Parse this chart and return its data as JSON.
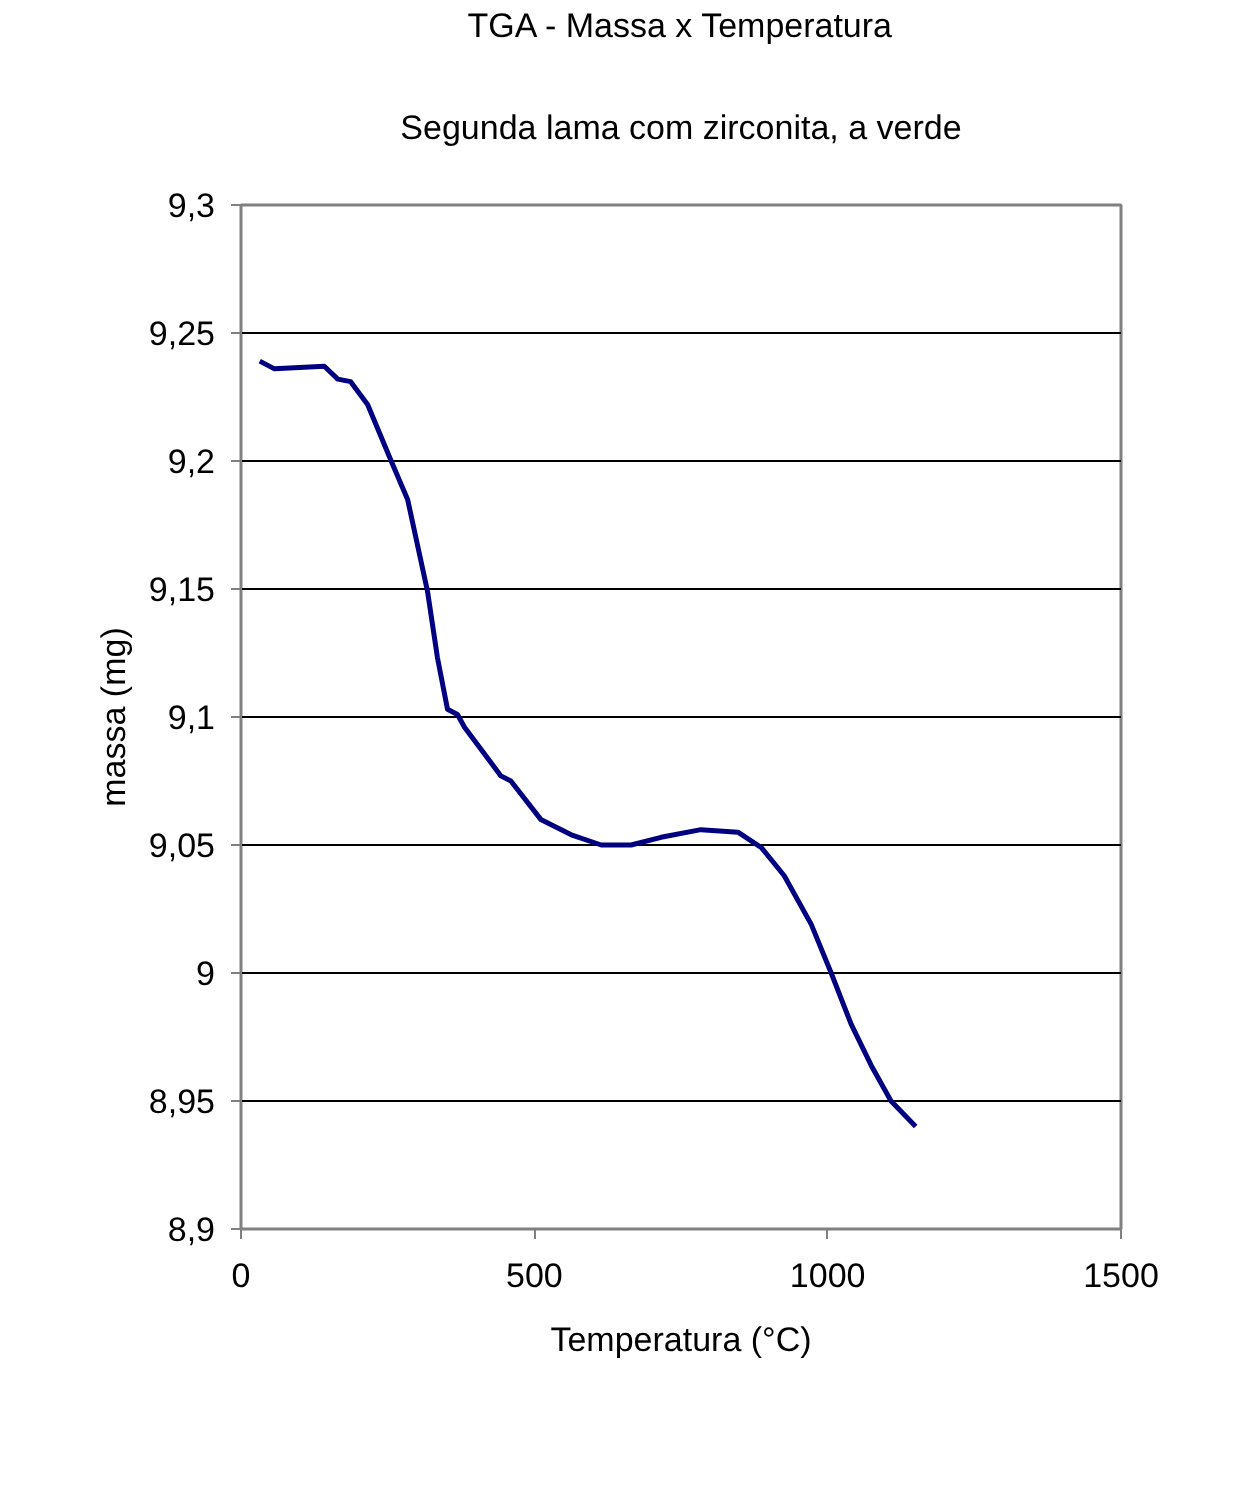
{
  "chart_data": {
    "type": "line",
    "title": "TGA - Massa x Temperatura",
    "subtitle": "Segunda lama com zirconita, a verde",
    "xlabel": "Temperatura (°C)",
    "ylabel": "massa (mg)",
    "xlim": [
      0,
      1500
    ],
    "xticks": [
      0,
      500,
      1000,
      1500
    ],
    "ylim": [
      8.9,
      9.3
    ],
    "yticks": [
      {
        "value": 8.9,
        "label": "8,9"
      },
      {
        "value": 8.95,
        "label": "8,95"
      },
      {
        "value": 9,
        "label": "9"
      },
      {
        "value": 9.05,
        "label": "9,05"
      },
      {
        "value": 9.1,
        "label": "9,1"
      },
      {
        "value": 9.15,
        "label": "9,15"
      },
      {
        "value": 9.2,
        "label": "9,2"
      },
      {
        "value": 9.25,
        "label": "9,25"
      },
      {
        "value": 9.3,
        "label": "9,3"
      }
    ],
    "grid": "y",
    "marker": "none",
    "line_style": "solid",
    "x": [
      32,
      57,
      142,
      165,
      187,
      216,
      256,
      284,
      318,
      335,
      352,
      369,
      381,
      443,
      460,
      511,
      563,
      614,
      665,
      716,
      784,
      847,
      887,
      926,
      972,
      1006,
      1040,
      1074,
      1108,
      1150
    ],
    "series": [
      {
        "color": "#000080",
        "values": [
          9.239,
          9.236,
          9.237,
          9.232,
          9.231,
          9.222,
          9.2,
          9.185,
          9.149,
          9.123,
          9.103,
          9.101,
          9.096,
          9.077,
          9.075,
          9.06,
          9.054,
          9.05,
          9.05,
          9.053,
          9.056,
          9.055,
          9.049,
          9.038,
          9.019,
          9.0,
          8.98,
          8.964,
          8.95,
          8.94
        ]
      }
    ]
  }
}
